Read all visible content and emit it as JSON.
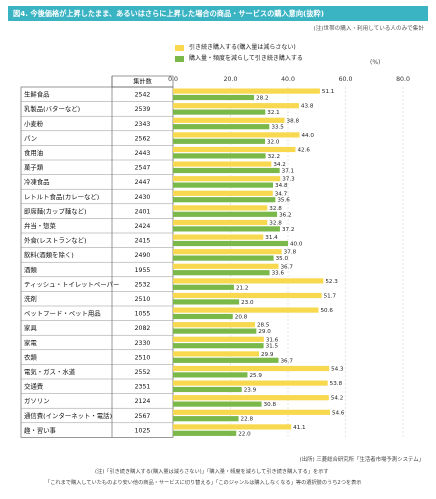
{
  "title": "図4. 今後価格が上昇したまま、あるいはさらに上昇した場合の商品・サービスの購入意向(抜粋)",
  "note_top": "(注)世帯の購入・利用している人のみで集計",
  "footnotes": [
    "(出所) 三菱総合研究所「生活者市場予測システム」",
    "(注)「引き続き購入する(購入量は減らさない)」「購入量・頻度を減らして引き続き購入する」を示す",
    "「これまで購入していたものより安い他の商品・サービスに切り替える」「このジャンルは購入しなくなる」等の選択肢のうち2つを表示"
  ],
  "chart_data": {
    "type": "bar",
    "orientation": "horizontal",
    "unit": "(%)",
    "n_header": "集計数",
    "xlim": [
      0,
      80
    ],
    "xticks": [
      "0.0",
      "20.0",
      "40.0",
      "60.0",
      "80.0"
    ],
    "categories": [
      "生鮮食品",
      "乳製品(バターなど)",
      "小麦粉",
      "パン",
      "食用油",
      "菓子類",
      "冷凍食品",
      "レトルト食品(カレーなど)",
      "即席麺(カップ麺など)",
      "弁当・惣菜",
      "外食(レストランなど)",
      "飲料(酒類を除く)",
      "酒類",
      "ティッシュ・トイレットペーパー",
      "洗剤",
      "ペットフード・ペット用品",
      "家具",
      "家電",
      "衣類",
      "電気・ガス・水道",
      "交通費",
      "ガソリン",
      "通信費(インターネット・電話)",
      "趣・習い事"
    ],
    "n": [
      "2542",
      "2539",
      "2343",
      "2562",
      "2443",
      "2547",
      "2447",
      "2430",
      "2401",
      "2424",
      "2415",
      "2490",
      "1955",
      "2532",
      "2510",
      "1055",
      "2082",
      "2330",
      "2510",
      "2552",
      "2351",
      "2124",
      "2567",
      "1025"
    ],
    "series": [
      {
        "name": "引き続き購入する(購入量は減らさない)",
        "color": "#f7d84e",
        "values": [
          51.1,
          43.8,
          38.8,
          44.0,
          42.6,
          34.2,
          37.3,
          34.7,
          32.8,
          32.8,
          31.4,
          37.8,
          36.7,
          52.3,
          51.7,
          50.6,
          28.5,
          31.6,
          29.9,
          54.3,
          53.8,
          54.2,
          54.6,
          41.1
        ]
      },
      {
        "name": "購入量・頻度を減らして引き続き購入する",
        "color": "#7bb84a",
        "values": [
          28.2,
          32.1,
          33.5,
          32.0,
          32.2,
          37.1,
          34.8,
          35.6,
          36.2,
          37.2,
          40.0,
          35.0,
          33.6,
          21.2,
          23.0,
          20.8,
          29.0,
          31.5,
          36.7,
          25.9,
          23.9,
          30.8,
          22.8,
          22.0
        ]
      }
    ]
  }
}
